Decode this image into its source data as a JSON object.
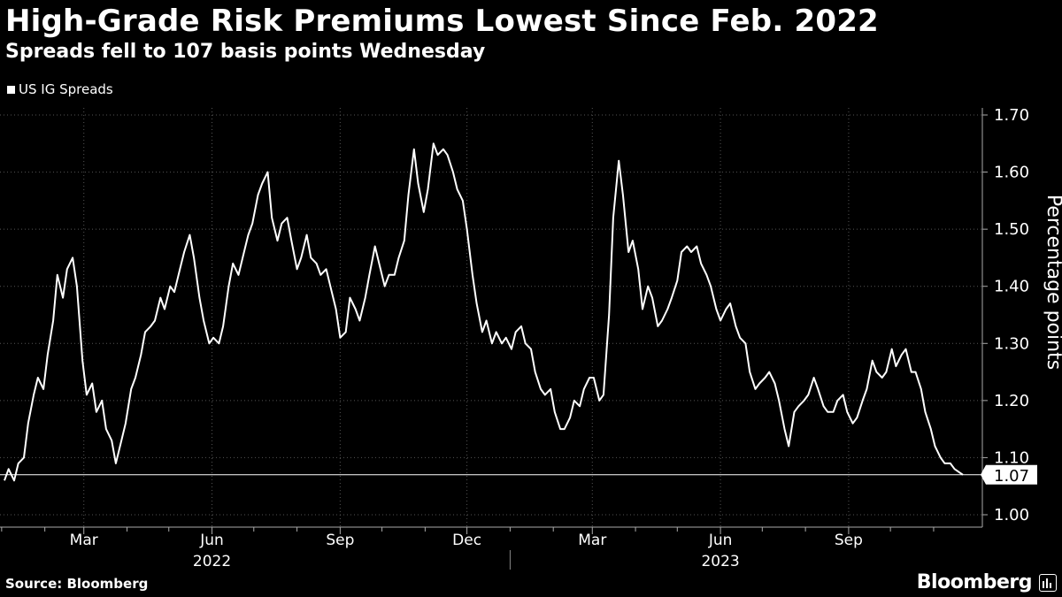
{
  "title": "High-Grade Risk Premiums Lowest Since Feb. 2022",
  "subtitle": "Spreads fell to 107 basis points Wednesday",
  "source": "Source: Bloomberg",
  "brand": "Bloomberg",
  "chart_data": {
    "type": "line",
    "ylabel": "Percentage points",
    "ylim": [
      1.0,
      1.7
    ],
    "yticks": [
      "1.00",
      "1.10",
      "1.20",
      "1.30",
      "1.40",
      "1.50",
      "1.60",
      "1.70"
    ],
    "xlim": [
      "2022-01-03",
      "2023-11-22"
    ],
    "month_ticks": [
      "2022-01-01",
      "2022-02-01",
      "2022-03-01",
      "2022-04-01",
      "2022-05-01",
      "2022-06-01",
      "2022-07-01",
      "2022-08-01",
      "2022-09-01",
      "2022-10-01",
      "2022-11-01",
      "2022-12-01",
      "2023-01-01",
      "2023-02-01",
      "2023-03-01",
      "2023-04-01",
      "2023-05-01",
      "2023-06-01",
      "2023-07-01",
      "2023-08-01",
      "2023-09-01",
      "2023-10-01",
      "2023-11-01"
    ],
    "xtick_labels": [
      {
        "date": "2022-03-01",
        "label": "Mar"
      },
      {
        "date": "2022-06-01",
        "label": "Jun"
      },
      {
        "date": "2022-09-01",
        "label": "Sep"
      },
      {
        "date": "2022-12-01",
        "label": "Dec"
      },
      {
        "date": "2023-03-01",
        "label": "Mar"
      },
      {
        "date": "2023-06-01",
        "label": "Jun"
      },
      {
        "date": "2023-09-01",
        "label": "Sep"
      }
    ],
    "year_labels": [
      {
        "date": "2022-06-01",
        "label": "2022"
      },
      {
        "date": "2023-06-01",
        "label": "2023"
      }
    ],
    "year_divider": "2023-01-01",
    "grid": true,
    "legend_position": "top-left",
    "last_value_label": "1.07",
    "reference_line": 1.07,
    "line_color": "#ffffff",
    "series": [
      {
        "name": "US IG Spreads",
        "points": [
          [
            "2022-01-03",
            1.06
          ],
          [
            "2022-01-06",
            1.08
          ],
          [
            "2022-01-10",
            1.06
          ],
          [
            "2022-01-13",
            1.09
          ],
          [
            "2022-01-17",
            1.1
          ],
          [
            "2022-01-20",
            1.16
          ],
          [
            "2022-01-24",
            1.21
          ],
          [
            "2022-01-27",
            1.24
          ],
          [
            "2022-01-31",
            1.22
          ],
          [
            "2022-02-03",
            1.28
          ],
          [
            "2022-02-07",
            1.34
          ],
          [
            "2022-02-10",
            1.42
          ],
          [
            "2022-02-14",
            1.38
          ],
          [
            "2022-02-17",
            1.43
          ],
          [
            "2022-02-21",
            1.45
          ],
          [
            "2022-02-24",
            1.4
          ],
          [
            "2022-02-28",
            1.27
          ],
          [
            "2022-03-03",
            1.21
          ],
          [
            "2022-03-07",
            1.23
          ],
          [
            "2022-03-10",
            1.18
          ],
          [
            "2022-03-14",
            1.2
          ],
          [
            "2022-03-17",
            1.15
          ],
          [
            "2022-03-21",
            1.13
          ],
          [
            "2022-03-24",
            1.09
          ],
          [
            "2022-03-28",
            1.13
          ],
          [
            "2022-03-31",
            1.16
          ],
          [
            "2022-04-04",
            1.22
          ],
          [
            "2022-04-07",
            1.24
          ],
          [
            "2022-04-11",
            1.28
          ],
          [
            "2022-04-14",
            1.32
          ],
          [
            "2022-04-18",
            1.33
          ],
          [
            "2022-04-21",
            1.34
          ],
          [
            "2022-04-25",
            1.38
          ],
          [
            "2022-04-28",
            1.36
          ],
          [
            "2022-05-02",
            1.4
          ],
          [
            "2022-05-05",
            1.39
          ],
          [
            "2022-05-09",
            1.43
          ],
          [
            "2022-05-12",
            1.46
          ],
          [
            "2022-05-16",
            1.49
          ],
          [
            "2022-05-19",
            1.45
          ],
          [
            "2022-05-23",
            1.38
          ],
          [
            "2022-05-26",
            1.34
          ],
          [
            "2022-05-30",
            1.3
          ],
          [
            "2022-06-02",
            1.31
          ],
          [
            "2022-06-06",
            1.3
          ],
          [
            "2022-06-09",
            1.33
          ],
          [
            "2022-06-13",
            1.4
          ],
          [
            "2022-06-16",
            1.44
          ],
          [
            "2022-06-20",
            1.42
          ],
          [
            "2022-06-23",
            1.45
          ],
          [
            "2022-06-27",
            1.49
          ],
          [
            "2022-06-30",
            1.51
          ],
          [
            "2022-07-04",
            1.56
          ],
          [
            "2022-07-07",
            1.58
          ],
          [
            "2022-07-11",
            1.6
          ],
          [
            "2022-07-14",
            1.52
          ],
          [
            "2022-07-18",
            1.48
          ],
          [
            "2022-07-21",
            1.51
          ],
          [
            "2022-07-25",
            1.52
          ],
          [
            "2022-07-28",
            1.48
          ],
          [
            "2022-08-01",
            1.43
          ],
          [
            "2022-08-04",
            1.45
          ],
          [
            "2022-08-08",
            1.49
          ],
          [
            "2022-08-11",
            1.45
          ],
          [
            "2022-08-15",
            1.44
          ],
          [
            "2022-08-18",
            1.42
          ],
          [
            "2022-08-22",
            1.43
          ],
          [
            "2022-08-25",
            1.4
          ],
          [
            "2022-08-29",
            1.36
          ],
          [
            "2022-09-01",
            1.31
          ],
          [
            "2022-09-05",
            1.32
          ],
          [
            "2022-09-08",
            1.38
          ],
          [
            "2022-09-12",
            1.36
          ],
          [
            "2022-09-15",
            1.34
          ],
          [
            "2022-09-19",
            1.38
          ],
          [
            "2022-09-22",
            1.42
          ],
          [
            "2022-09-26",
            1.47
          ],
          [
            "2022-09-29",
            1.44
          ],
          [
            "2022-10-03",
            1.4
          ],
          [
            "2022-10-06",
            1.42
          ],
          [
            "2022-10-10",
            1.42
          ],
          [
            "2022-10-13",
            1.45
          ],
          [
            "2022-10-17",
            1.48
          ],
          [
            "2022-10-20",
            1.56
          ],
          [
            "2022-10-24",
            1.64
          ],
          [
            "2022-10-27",
            1.58
          ],
          [
            "2022-10-31",
            1.53
          ],
          [
            "2022-11-03",
            1.57
          ],
          [
            "2022-11-07",
            1.65
          ],
          [
            "2022-11-10",
            1.63
          ],
          [
            "2022-11-14",
            1.64
          ],
          [
            "2022-11-17",
            1.63
          ],
          [
            "2022-11-21",
            1.6
          ],
          [
            "2022-11-24",
            1.57
          ],
          [
            "2022-11-28",
            1.55
          ],
          [
            "2022-12-01",
            1.5
          ],
          [
            "2022-12-05",
            1.42
          ],
          [
            "2022-12-08",
            1.37
          ],
          [
            "2022-12-12",
            1.32
          ],
          [
            "2022-12-15",
            1.34
          ],
          [
            "2022-12-19",
            1.3
          ],
          [
            "2022-12-22",
            1.32
          ],
          [
            "2022-12-26",
            1.3
          ],
          [
            "2022-12-29",
            1.31
          ],
          [
            "2023-01-02",
            1.29
          ],
          [
            "2023-01-05",
            1.32
          ],
          [
            "2023-01-09",
            1.33
          ],
          [
            "2023-01-12",
            1.3
          ],
          [
            "2023-01-16",
            1.29
          ],
          [
            "2023-01-19",
            1.25
          ],
          [
            "2023-01-23",
            1.22
          ],
          [
            "2023-01-26",
            1.21
          ],
          [
            "2023-01-30",
            1.22
          ],
          [
            "2023-02-02",
            1.18
          ],
          [
            "2023-02-06",
            1.15
          ],
          [
            "2023-02-09",
            1.15
          ],
          [
            "2023-02-13",
            1.17
          ],
          [
            "2023-02-16",
            1.2
          ],
          [
            "2023-02-20",
            1.19
          ],
          [
            "2023-02-23",
            1.22
          ],
          [
            "2023-02-27",
            1.24
          ],
          [
            "2023-03-02",
            1.24
          ],
          [
            "2023-03-06",
            1.2
          ],
          [
            "2023-03-09",
            1.21
          ],
          [
            "2023-03-13",
            1.35
          ],
          [
            "2023-03-16",
            1.52
          ],
          [
            "2023-03-20",
            1.62
          ],
          [
            "2023-03-23",
            1.56
          ],
          [
            "2023-03-27",
            1.46
          ],
          [
            "2023-03-30",
            1.48
          ],
          [
            "2023-04-03",
            1.43
          ],
          [
            "2023-04-06",
            1.36
          ],
          [
            "2023-04-10",
            1.4
          ],
          [
            "2023-04-13",
            1.38
          ],
          [
            "2023-04-17",
            1.33
          ],
          [
            "2023-04-20",
            1.34
          ],
          [
            "2023-04-24",
            1.36
          ],
          [
            "2023-04-27",
            1.38
          ],
          [
            "2023-05-01",
            1.41
          ],
          [
            "2023-05-04",
            1.46
          ],
          [
            "2023-05-08",
            1.47
          ],
          [
            "2023-05-11",
            1.46
          ],
          [
            "2023-05-15",
            1.47
          ],
          [
            "2023-05-18",
            1.44
          ],
          [
            "2023-05-22",
            1.42
          ],
          [
            "2023-05-25",
            1.4
          ],
          [
            "2023-05-29",
            1.36
          ],
          [
            "2023-06-01",
            1.34
          ],
          [
            "2023-06-05",
            1.36
          ],
          [
            "2023-06-08",
            1.37
          ],
          [
            "2023-06-12",
            1.33
          ],
          [
            "2023-06-15",
            1.31
          ],
          [
            "2023-06-19",
            1.3
          ],
          [
            "2023-06-22",
            1.25
          ],
          [
            "2023-06-26",
            1.22
          ],
          [
            "2023-06-29",
            1.23
          ],
          [
            "2023-07-03",
            1.24
          ],
          [
            "2023-07-06",
            1.25
          ],
          [
            "2023-07-10",
            1.23
          ],
          [
            "2023-07-13",
            1.2
          ],
          [
            "2023-07-17",
            1.15
          ],
          [
            "2023-07-20",
            1.12
          ],
          [
            "2023-07-24",
            1.18
          ],
          [
            "2023-07-27",
            1.19
          ],
          [
            "2023-07-31",
            1.2
          ],
          [
            "2023-08-03",
            1.21
          ],
          [
            "2023-08-07",
            1.24
          ],
          [
            "2023-08-10",
            1.22
          ],
          [
            "2023-08-14",
            1.19
          ],
          [
            "2023-08-17",
            1.18
          ],
          [
            "2023-08-21",
            1.18
          ],
          [
            "2023-08-24",
            1.2
          ],
          [
            "2023-08-28",
            1.21
          ],
          [
            "2023-08-31",
            1.18
          ],
          [
            "2023-09-04",
            1.16
          ],
          [
            "2023-09-07",
            1.17
          ],
          [
            "2023-09-11",
            1.2
          ],
          [
            "2023-09-14",
            1.22
          ],
          [
            "2023-09-18",
            1.27
          ],
          [
            "2023-09-21",
            1.25
          ],
          [
            "2023-09-25",
            1.24
          ],
          [
            "2023-09-28",
            1.25
          ],
          [
            "2023-10-02",
            1.29
          ],
          [
            "2023-10-05",
            1.26
          ],
          [
            "2023-10-09",
            1.28
          ],
          [
            "2023-10-12",
            1.29
          ],
          [
            "2023-10-16",
            1.25
          ],
          [
            "2023-10-19",
            1.25
          ],
          [
            "2023-10-23",
            1.22
          ],
          [
            "2023-10-26",
            1.18
          ],
          [
            "2023-10-30",
            1.15
          ],
          [
            "2023-11-02",
            1.12
          ],
          [
            "2023-11-06",
            1.1
          ],
          [
            "2023-11-09",
            1.09
          ],
          [
            "2023-11-13",
            1.09
          ],
          [
            "2023-11-16",
            1.08
          ],
          [
            "2023-11-22",
            1.07
          ]
        ]
      }
    ]
  }
}
